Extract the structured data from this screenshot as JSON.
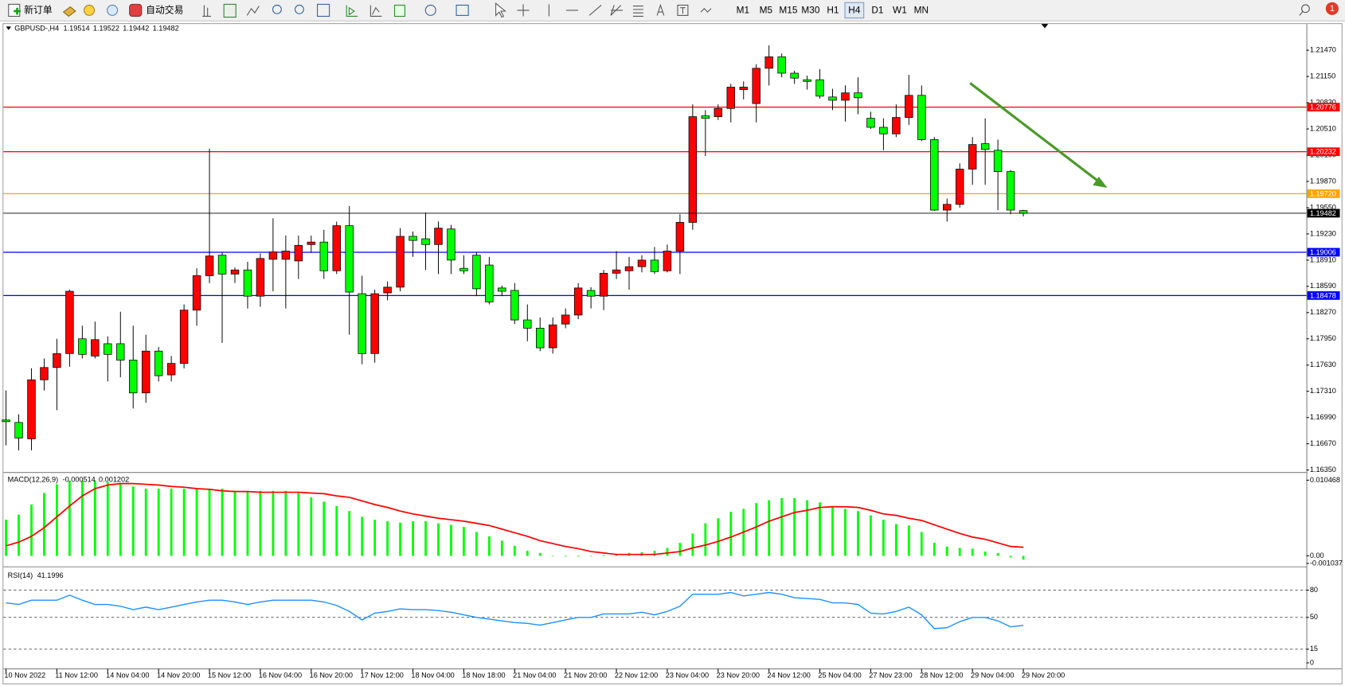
{
  "toolbar": {
    "new_order": "新订单",
    "auto_trading": "自动交易",
    "timeframes": [
      "M1",
      "M5",
      "M15",
      "M30",
      "H1",
      "H4",
      "D1",
      "W1",
      "MN"
    ],
    "notifications": 1
  },
  "chart_data": [
    {
      "type": "candlestick",
      "title": "GBPUSD-,H4",
      "quote": [
        1.19514,
        1.19522,
        1.19442,
        1.19482
      ],
      "colors": {
        "up": "#ff0000",
        "down": "#00ff00"
      },
      "x": [
        "10 Nov 2022",
        null,
        null,
        null,
        "11 Nov 12:00",
        null,
        null,
        null,
        "14 Nov 04:00",
        null,
        null,
        null,
        "14 Nov 20:00",
        null,
        null,
        null,
        "15 Nov 12:00",
        null,
        null,
        null,
        "16 Nov 04:00",
        null,
        null,
        null,
        "16 Nov 20:00",
        null,
        null,
        null,
        "17 Nov 12:00",
        null,
        null,
        null,
        "18 Nov 04:00",
        null,
        null,
        null,
        "18 Nov 18:00",
        null,
        null,
        null,
        "21 Nov 04:00",
        null,
        null,
        null,
        "21 Nov 20:00",
        null,
        null,
        null,
        "22 Nov 12:00",
        null,
        null,
        null,
        "23 Nov 04:00",
        null,
        null,
        null,
        "23 Nov 20:00",
        null,
        null,
        null,
        "24 Nov 12:00",
        null,
        null,
        null,
        "25 Nov 04:00",
        null,
        null,
        null,
        "27 Nov 23:00",
        null,
        null,
        null,
        "28 Nov 12:00",
        null,
        null,
        null,
        "29 Nov 04:00",
        null,
        null,
        null,
        "29 Nov 20:00"
      ],
      "ohlc": [
        [
          1.1696,
          1.1732,
          1.1665,
          1.1694
        ],
        [
          1.1693,
          1.1703,
          1.1659,
          1.1674
        ],
        [
          1.1673,
          1.1759,
          1.1659,
          1.1745
        ],
        [
          1.1745,
          1.1771,
          1.1732,
          1.176
        ],
        [
          1.176,
          1.1795,
          1.1708,
          1.1777
        ],
        [
          1.1777,
          1.1855,
          1.1761,
          1.1853
        ],
        [
          1.1795,
          1.1811,
          1.1771,
          1.1776
        ],
        [
          1.1774,
          1.1816,
          1.1771,
          1.1794
        ],
        [
          1.1789,
          1.1798,
          1.1743,
          1.1776
        ],
        [
          1.1789,
          1.1828,
          1.1748,
          1.1769
        ],
        [
          1.1769,
          1.1811,
          1.171,
          1.1729
        ],
        [
          1.1729,
          1.18,
          1.1717,
          1.178
        ],
        [
          1.178,
          1.1785,
          1.1743,
          1.175
        ],
        [
          1.1751,
          1.1774,
          1.1743,
          1.1765
        ],
        [
          1.1765,
          1.1837,
          1.1759,
          1.183
        ],
        [
          1.183,
          1.1881,
          1.1811,
          1.1872
        ],
        [
          1.1872,
          1.2027,
          1.1863,
          1.1896
        ],
        [
          1.1897,
          1.1901,
          1.179,
          1.1874
        ],
        [
          1.1874,
          1.1882,
          1.1863,
          1.1879
        ],
        [
          1.1879,
          1.1889,
          1.1832,
          1.1847
        ],
        [
          1.1847,
          1.1899,
          1.1834,
          1.1893
        ],
        [
          1.1892,
          1.1942,
          1.1853,
          1.1901
        ],
        [
          1.1892,
          1.1921,
          1.1832,
          1.1902
        ],
        [
          1.189,
          1.1921,
          1.1868,
          1.1909
        ],
        [
          1.191,
          1.1921,
          1.19,
          1.1913
        ],
        [
          1.1913,
          1.1928,
          1.1868,
          1.1878
        ],
        [
          1.1878,
          1.1938,
          1.1874,
          1.1933
        ],
        [
          1.1933,
          1.1957,
          1.18,
          1.1852
        ],
        [
          1.185,
          1.1872,
          1.1764,
          1.1777
        ],
        [
          1.1777,
          1.1855,
          1.1766,
          1.185
        ],
        [
          1.1851,
          1.1865,
          1.1842,
          1.1858
        ],
        [
          1.1858,
          1.193,
          1.1853,
          1.192
        ],
        [
          1.192,
          1.1926,
          1.1895,
          1.1915
        ],
        [
          1.1917,
          1.1949,
          1.1879,
          1.191
        ],
        [
          1.191,
          1.1938,
          1.1874,
          1.193
        ],
        [
          1.1929,
          1.1934,
          1.1874,
          1.1891
        ],
        [
          1.1881,
          1.1897,
          1.1874,
          1.1878
        ],
        [
          1.1897,
          1.1901,
          1.1847,
          1.1856
        ],
        [
          1.1885,
          1.1895,
          1.1837,
          1.184
        ],
        [
          1.1857,
          1.186,
          1.1847,
          1.1853
        ],
        [
          1.1854,
          1.1863,
          1.1813,
          1.1818
        ],
        [
          1.1818,
          1.1837,
          1.1792,
          1.1808
        ],
        [
          1.1808,
          1.1821,
          1.178,
          1.1784
        ],
        [
          1.1784,
          1.1821,
          1.1777,
          1.1812
        ],
        [
          1.1813,
          1.1832,
          1.1808,
          1.1824
        ],
        [
          1.1824,
          1.1863,
          1.1819,
          1.1857
        ],
        [
          1.1854,
          1.1858,
          1.1832,
          1.1847
        ],
        [
          1.1847,
          1.1879,
          1.183,
          1.1875
        ],
        [
          1.1875,
          1.1902,
          1.1868,
          1.1879
        ],
        [
          1.1878,
          1.1895,
          1.1855,
          1.1883
        ],
        [
          1.1883,
          1.1897,
          1.1876,
          1.1891
        ],
        [
          1.1891,
          1.1907,
          1.1874,
          1.1877
        ],
        [
          1.1878,
          1.191,
          1.1876,
          1.1902
        ],
        [
          1.1902,
          1.1947,
          1.1874,
          1.1937
        ],
        [
          1.1937,
          1.2081,
          1.1928,
          1.2066
        ],
        [
          1.2067,
          1.2074,
          1.2018,
          1.2064
        ],
        [
          1.2066,
          1.2081,
          1.2062,
          1.2076
        ],
        [
          1.2076,
          1.2106,
          1.2059,
          1.2102
        ],
        [
          1.2099,
          1.2109,
          1.2087,
          1.2102
        ],
        [
          1.2082,
          1.213,
          1.2059,
          1.2125
        ],
        [
          1.2125,
          1.2153,
          1.2104,
          1.2139
        ],
        [
          1.2139,
          1.2143,
          1.2114,
          1.2119
        ],
        [
          1.2119,
          1.2122,
          1.2106,
          1.2113
        ],
        [
          1.2111,
          1.2116,
          1.2099,
          1.2109
        ],
        [
          1.2111,
          1.2124,
          1.2088,
          1.2091
        ],
        [
          1.209,
          1.21,
          1.2074,
          1.2086
        ],
        [
          1.2086,
          1.2104,
          1.206,
          1.2095
        ],
        [
          1.2095,
          1.2114,
          1.2069,
          1.2089
        ],
        [
          1.2064,
          1.2072,
          1.2051,
          1.2053
        ],
        [
          1.2053,
          1.2064,
          1.2025,
          1.2045
        ],
        [
          1.2045,
          1.2081,
          1.2041,
          1.2065
        ],
        [
          1.2065,
          1.2117,
          1.2056,
          1.2092
        ],
        [
          1.2092,
          1.2104,
          1.2036,
          1.2038
        ],
        [
          1.2038,
          1.2041,
          1.1951,
          1.1952
        ],
        [
          1.1952,
          1.1966,
          1.1938,
          1.1959
        ],
        [
          1.1959,
          1.2009,
          1.1955,
          1.2002
        ],
        [
          1.2002,
          1.2041,
          1.1983,
          1.2032
        ],
        [
          1.2033,
          1.2064,
          1.1983,
          1.2026
        ],
        [
          1.2025,
          1.2038,
          1.1952,
          1.1999
        ],
        [
          1.1999,
          1.2001,
          1.1947,
          1.1952
        ],
        [
          1.19514,
          1.19522,
          1.19442,
          1.19482
        ]
      ],
      "levels": [
        {
          "value": 1.20776,
          "color": "#ff0000"
        },
        {
          "value": 1.20232,
          "color": "#ff0000"
        },
        {
          "value": 1.1972,
          "label": "1.19720",
          "color": "#ffa500"
        },
        {
          "value": 1.19006,
          "color": "#0000ff"
        },
        {
          "value": 1.18478,
          "color": "#0000ff"
        }
      ],
      "current_color": "#000000",
      "ylim": [
        1.1633,
        1.2179
      ],
      "yticks": [
        {
          "value": 1.2147,
          "label": "1.21470"
        },
        {
          "value": 1.2115,
          "label": "1.21150"
        },
        {
          "value": 1.2083,
          "label": "1.20830"
        },
        {
          "value": 1.2051,
          "label": "1.20510"
        },
        {
          "value": 1.2019,
          "label": "1.20190"
        },
        {
          "value": 1.1987,
          "label": "1.19870"
        },
        {
          "value": 1.1955,
          "label": "1.19550"
        },
        {
          "value": 1.1923,
          "label": "1.19230"
        },
        {
          "value": 1.1891,
          "label": "1.18910"
        },
        {
          "value": 1.1859,
          "label": "1.18590"
        },
        {
          "value": 1.1827,
          "label": "1.18270"
        },
        {
          "value": 1.1795,
          "label": "1.17950"
        },
        {
          "value": 1.1763,
          "label": "1.17630"
        },
        {
          "value": 1.1731,
          "label": "1.17310"
        },
        {
          "value": 1.1699,
          "label": "1.16990"
        },
        {
          "value": 1.1667,
          "label": "1.16670"
        },
        {
          "value": 1.1635,
          "label": "1.16350"
        }
      ]
    },
    {
      "type": "macd",
      "title": "MACD(12,26,9)",
      "series": [
        {
          "color": "#00ff00",
          "values": [
            0.005,
            0.0057,
            0.0071,
            0.0087,
            0.0099,
            0.0104,
            0.0104,
            0.0104,
            0.0102,
            0.0099,
            0.0096,
            0.0093,
            0.0093,
            0.0093,
            0.0093,
            0.0093,
            0.0093,
            0.0093,
            0.009,
            0.009,
            0.009,
            0.009,
            0.009,
            0.0087,
            0.0081,
            0.0075,
            0.0069,
            0.0062,
            0.0054,
            0.005,
            0.0048,
            0.0046,
            0.0048,
            0.0048,
            0.0045,
            0.0043,
            0.004,
            0.0033,
            0.0027,
            0.0021,
            0.0014,
            0.0007,
            0.0004,
            0,
            -0.0001,
            -0.0001,
            0,
            0.0001,
            0.0002,
            0.0004,
            0.0005,
            0.0007,
            0.0011,
            0.0018,
            0.0031,
            0.0045,
            0.0052,
            0.0061,
            0.0065,
            0.0073,
            0.0077,
            0.008,
            0.008,
            0.0077,
            0.0074,
            0.0069,
            0.0065,
            0.0062,
            0.0056,
            0.005,
            0.0044,
            0.0042,
            0.0033,
            0.0018,
            0.0013,
            0.0011,
            0.001,
            0.0006,
            0.0004,
            -0.0002,
            -0.000514
          ]
        },
        {
          "color": "#ff0000",
          "values": [
            0.0014,
            0.0019,
            0.0027,
            0.0039,
            0.0054,
            0.0069,
            0.0083,
            0.0093,
            0.0098,
            0.01,
            0.01,
            0.0099,
            0.0098,
            0.0096,
            0.0095,
            0.0093,
            0.0092,
            0.009,
            0.0089,
            0.0089,
            0.0088,
            0.0088,
            0.0088,
            0.0088,
            0.0087,
            0.0086,
            0.0083,
            0.0081,
            0.0076,
            0.0071,
            0.0067,
            0.0062,
            0.0058,
            0.0055,
            0.0052,
            0.005,
            0.0048,
            0.0045,
            0.0042,
            0.0037,
            0.0032,
            0.0027,
            0.0021,
            0.0017,
            0.0013,
            0.001,
            0.0006,
            0.0004,
            0.0002,
            0.0002,
            0.0002,
            0.0002,
            0.0004,
            0.0006,
            0.0011,
            0.0015,
            0.002,
            0.0026,
            0.0033,
            0.004,
            0.0048,
            0.0054,
            0.006,
            0.0063,
            0.0067,
            0.0068,
            0.0068,
            0.0067,
            0.0063,
            0.0058,
            0.0056,
            0.0052,
            0.0049,
            0.0043,
            0.0037,
            0.0031,
            0.0026,
            0.0023,
            0.0018,
            0.0013,
            0.001202
          ]
        }
      ],
      "ylim": [
        -0.001037,
        0.010468
      ],
      "yticks": [
        0.010468,
        {
          "value": 0,
          "label": "0.00"
        },
        -0.001037
      ]
    },
    {
      "type": "line",
      "title": "RSI(14)",
      "series": [
        {
          "color": "#1e90ff",
          "values": [
            66,
            64.2,
            68.9,
            68.9,
            68.9,
            74.5,
            68.9,
            64.2,
            64.2,
            62.3,
            58.5,
            61.3,
            58.5,
            61.3,
            64.2,
            67,
            68.9,
            68.9,
            67,
            64.2,
            67,
            68.9,
            68.9,
            68.9,
            68.9,
            67,
            63.2,
            56.6,
            47.2,
            54.7,
            56.6,
            59.4,
            58.5,
            58.5,
            57.5,
            55.7,
            52.8,
            50,
            48.1,
            46.2,
            44.3,
            43.4,
            41.5,
            44.3,
            47.2,
            50,
            50,
            53.8,
            53.8,
            53.8,
            55.7,
            52.8,
            56.6,
            62.3,
            75.5,
            75.5,
            75.5,
            77.4,
            73.6,
            75.5,
            77.4,
            75.5,
            71.7,
            70.8,
            69.8,
            66,
            66,
            64.2,
            54.7,
            53.8,
            56.6,
            61.3,
            52.8,
            37.7,
            38.7,
            45.3,
            50,
            50,
            46.2,
            39.6,
            41.1996
          ]
        }
      ],
      "ylim": [
        0,
        100
      ],
      "yticks": [
        80,
        50,
        15,
        0
      ],
      "grid": true
    }
  ]
}
